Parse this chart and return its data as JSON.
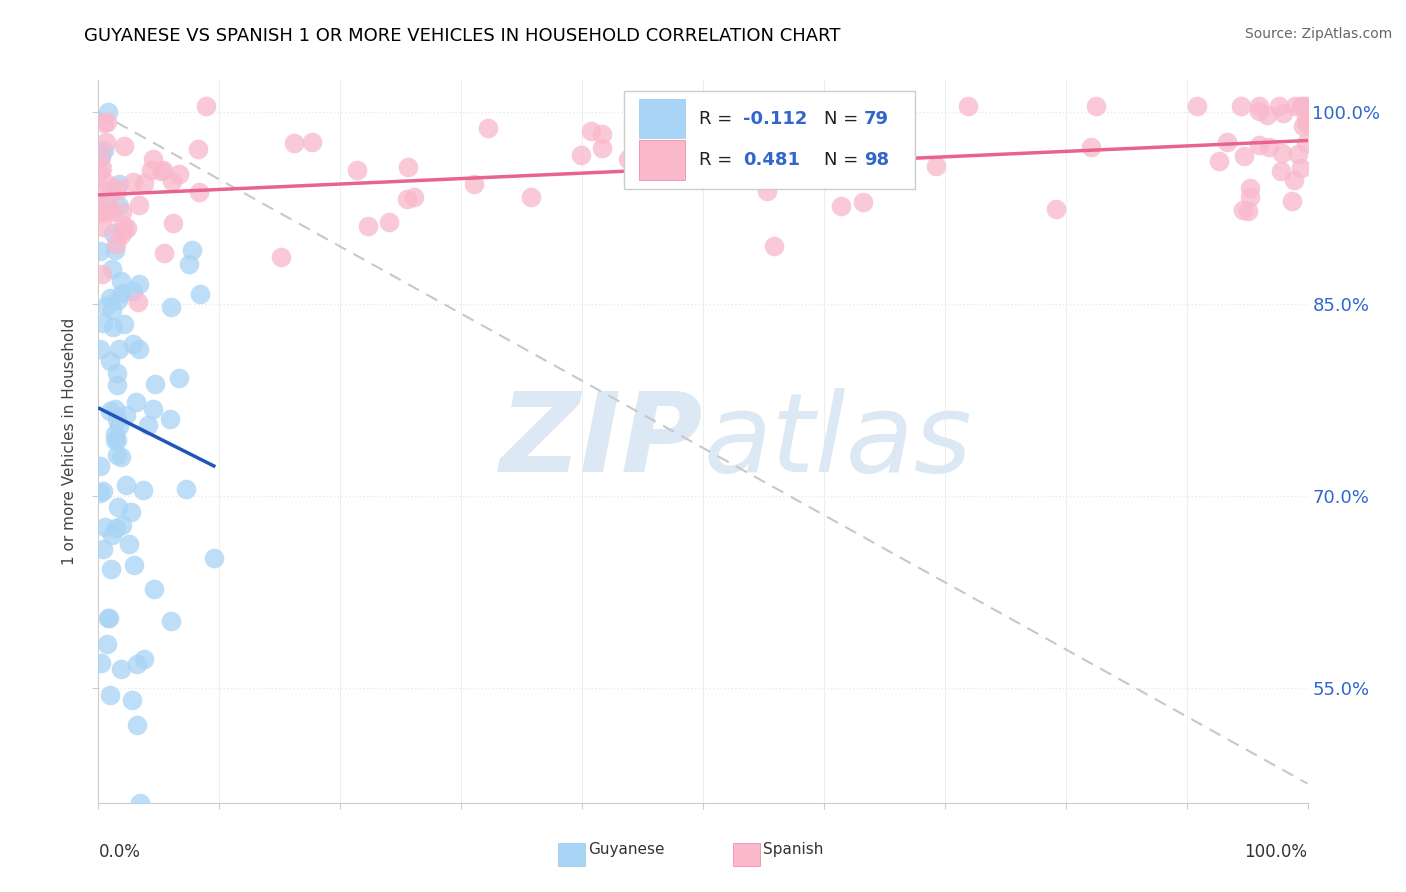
{
  "title": "GUYANESE VS SPANISH 1 OR MORE VEHICLES IN HOUSEHOLD CORRELATION CHART",
  "source": "Source: ZipAtlas.com",
  "ylabel": "1 or more Vehicles in Household",
  "ytick_labels": [
    "55.0%",
    "70.0%",
    "85.0%",
    "100.0%"
  ],
  "ytick_values": [
    0.55,
    0.7,
    0.85,
    1.0
  ],
  "guyanese_color": "#A8D4F5",
  "spanish_color": "#F9B8CC",
  "guyanese_line_color": "#2255BB",
  "spanish_line_color": "#E8648C",
  "dashed_line_color": "#C8C8C8",
  "r_guyanese": -0.112,
  "r_spanish": 0.481,
  "n_guyanese": 79,
  "n_spanish": 98,
  "background_color": "#FFFFFF",
  "watermark_color": "#DDE8F5",
  "legend_box_color": "#F0F0F0",
  "title_color": "#000000",
  "source_color": "#666666",
  "ytick_color": "#3366CC",
  "axis_color": "#CCCCCC",
  "grid_color": "#E8E8E8"
}
